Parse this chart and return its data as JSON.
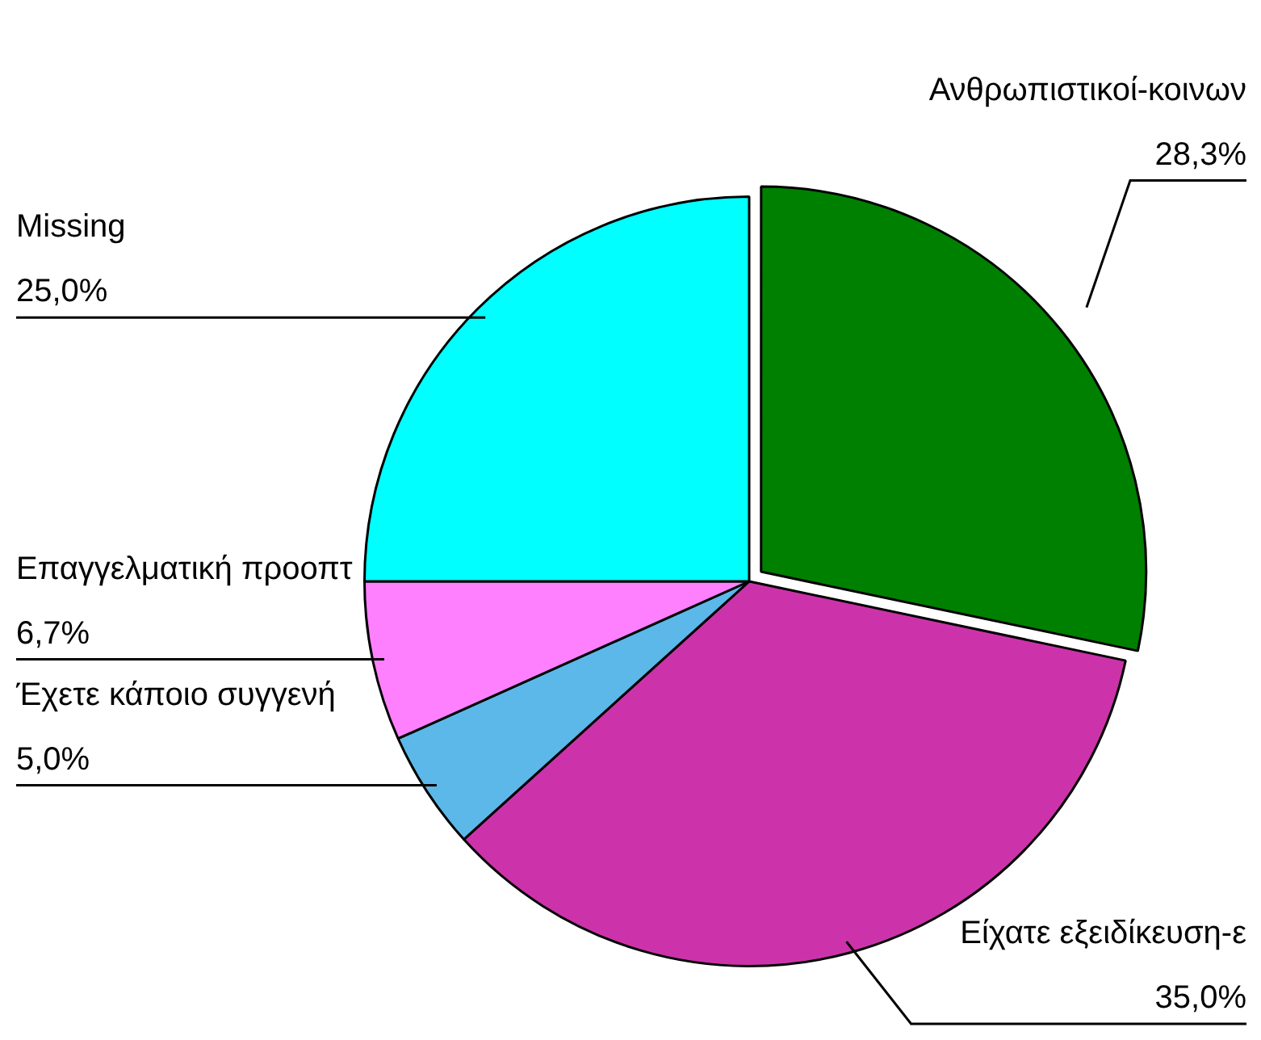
{
  "chart_data": {
    "type": "pie",
    "categories": [
      "Ανθρωπιστικοί-κοινων",
      "Είχατε εξειδίκευση-ε",
      "Έχετε κάποιο συγγενή",
      "Επαγγελματική προοπτ",
      "Missing"
    ],
    "values": [
      28.3,
      35.0,
      5.0,
      6.7,
      25.0
    ],
    "value_labels": [
      "28,3%",
      "35,0%",
      "5,0%",
      "6,7%",
      "25,0%"
    ],
    "colors": [
      "#008000",
      "#cc33aa",
      "#5bb8e8",
      "#ff80ff",
      "#00ffff"
    ],
    "legend": false
  }
}
